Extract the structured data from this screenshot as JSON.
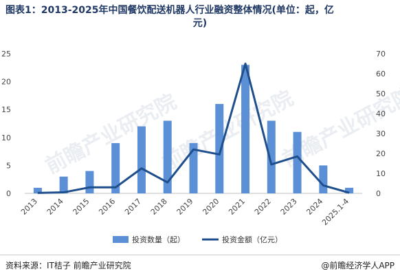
{
  "title_prefix": "图表1：2013-2025年中国餐饮配送机器人行业融资整体情况(单位：起，亿",
  "title_suffix": "元)",
  "source": "资料来源：IT桔子 前瞻产业研究院",
  "credit": "@前瞻经济学人APP",
  "watermark": "前瞻产业研究院",
  "colors": {
    "bar": "#5b8fd6",
    "line": "#1f4e8c",
    "title": "#1f3864"
  },
  "chart_data": {
    "type": "bar",
    "categories": [
      "2013",
      "2014",
      "2015",
      "2016",
      "2017",
      "2018",
      "2019",
      "2020",
      "2021",
      "2022",
      "2023",
      "2024",
      "2025.1-4"
    ],
    "series": [
      {
        "name": "投资数量（起）",
        "type": "bar",
        "axis": "left",
        "values": [
          1,
          3,
          4,
          9,
          12,
          13,
          9,
          16,
          23,
          13,
          11,
          5,
          1
        ]
      },
      {
        "name": "投资金额（亿元）",
        "type": "line",
        "axis": "right",
        "values": [
          0.2,
          0.5,
          3,
          3,
          12.5,
          5.5,
          22,
          19.5,
          65,
          14.5,
          18.5,
          4,
          0.3
        ]
      }
    ],
    "y_left": {
      "lim": [
        0,
        25
      ],
      "ticks": [
        0,
        5,
        10,
        15,
        20,
        25
      ]
    },
    "y_right": {
      "lim": [
        0,
        70
      ],
      "ticks": [
        0,
        10,
        20,
        30,
        40,
        50,
        60,
        70
      ]
    },
    "legend": {
      "position": "bottom",
      "items": [
        {
          "label": "投资数量（起）",
          "kind": "bar"
        },
        {
          "label": "投资金额（亿元）",
          "kind": "line"
        }
      ]
    },
    "grid": false
  }
}
